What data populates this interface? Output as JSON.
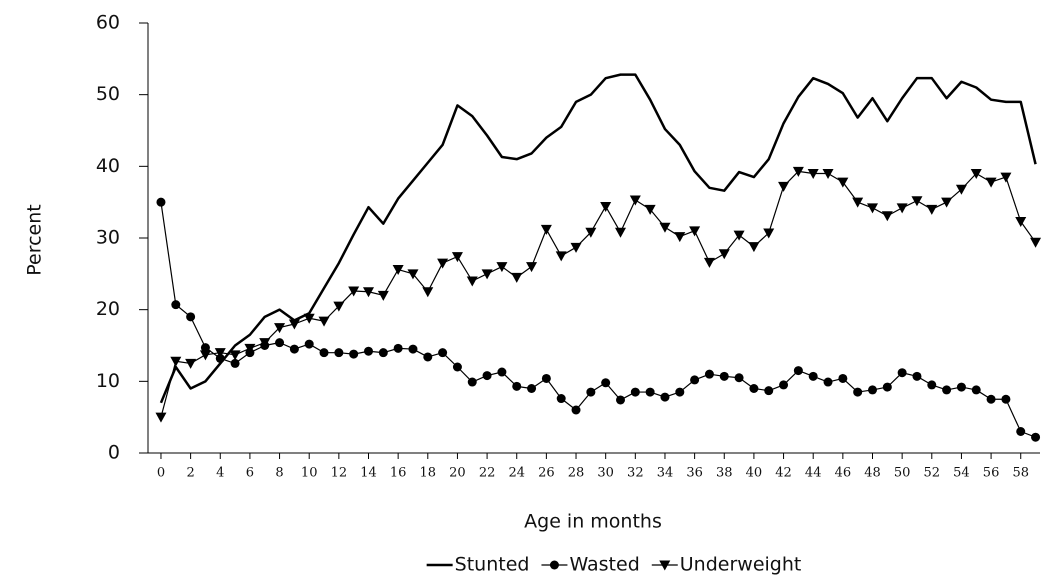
{
  "chart_data": {
    "type": "line",
    "x_label": "Age in months",
    "y_label": "Percent",
    "x": [
      0,
      1,
      2,
      3,
      4,
      5,
      6,
      7,
      8,
      9,
      10,
      11,
      12,
      13,
      14,
      15,
      16,
      17,
      18,
      19,
      20,
      21,
      22,
      23,
      24,
      25,
      26,
      27,
      28,
      29,
      30,
      31,
      32,
      33,
      34,
      35,
      36,
      37,
      38,
      39,
      40,
      41,
      42,
      43,
      44,
      45,
      46,
      47,
      48,
      49,
      50,
      51,
      52,
      53,
      54,
      55,
      56,
      57,
      58,
      59
    ],
    "xlim": [
      -0.875,
      59.3
    ],
    "xticks": [
      0,
      2,
      4,
      6,
      8,
      10,
      12,
      14,
      16,
      18,
      20,
      22,
      24,
      26,
      28,
      30,
      32,
      34,
      36,
      38,
      40,
      42,
      44,
      46,
      48,
      50,
      52,
      54,
      56,
      58
    ],
    "ylim": [
      0,
      60
    ],
    "yticks": [
      0,
      10,
      20,
      30,
      40,
      50,
      60
    ],
    "legend": "bottom",
    "series": [
      {
        "name": "Stunted",
        "color": "#000000",
        "marker": "none",
        "values": [
          7,
          12,
          9,
          10,
          12.5,
          15,
          16.5,
          19,
          20,
          18.5,
          19.5,
          23,
          26.5,
          30.5,
          34.3,
          32,
          35.5,
          38,
          40.5,
          43,
          48.5,
          47,
          44.3,
          41.3,
          41,
          41.8,
          44,
          45.5,
          49,
          50,
          52.3,
          52.8,
          52.8,
          49.3,
          45.2,
          43,
          39.3,
          37,
          36.6,
          39.2,
          38.5,
          41,
          46,
          49.7,
          52.3,
          51.5,
          50.2,
          46.8,
          49.5,
          46.3,
          49.5,
          52.3,
          52.3,
          49.5,
          51.8,
          51,
          49.3,
          49,
          49,
          40.3
        ]
      },
      {
        "name": "Wasted",
        "color": "#000000",
        "marker": "circle",
        "values": [
          35,
          20.7,
          19,
          14.7,
          13.2,
          12.5,
          14,
          15,
          15.4,
          14.5,
          15.2,
          14,
          14,
          13.8,
          14.2,
          14,
          14.6,
          14.5,
          13.4,
          14,
          12,
          9.9,
          10.8,
          11.3,
          9.3,
          9,
          10.4,
          7.6,
          6,
          8.5,
          9.8,
          7.4,
          8.5,
          8.5,
          7.8,
          8.5,
          10.2,
          11,
          10.7,
          10.5,
          9,
          8.7,
          9.5,
          11.5,
          10.7,
          9.9,
          10.4,
          8.5,
          8.8,
          9.2,
          11.2,
          10.7,
          9.5,
          8.8,
          9.2,
          8.8,
          7.5,
          7.5,
          3,
          2.2
        ]
      },
      {
        "name": "Underweight",
        "color": "#000000",
        "marker": "triangle-down",
        "values": [
          5,
          12.8,
          12.5,
          13.7,
          14,
          13.7,
          14.6,
          15.4,
          17.5,
          18,
          18.8,
          18.4,
          20.5,
          22.6,
          22.5,
          22,
          25.6,
          25,
          22.5,
          26.5,
          27.4,
          24,
          25,
          26,
          24.5,
          26,
          31.2,
          27.5,
          28.7,
          30.8,
          34.4,
          30.8,
          35.3,
          34,
          31.5,
          30.2,
          31,
          26.6,
          27.8,
          30.4,
          28.8,
          30.7,
          37.2,
          39.3,
          39,
          39,
          37.8,
          35,
          34.2,
          33.1,
          34.2,
          35.2,
          34,
          35,
          36.8,
          39,
          37.8,
          38.5,
          32.3,
          29.4
        ]
      }
    ]
  }
}
